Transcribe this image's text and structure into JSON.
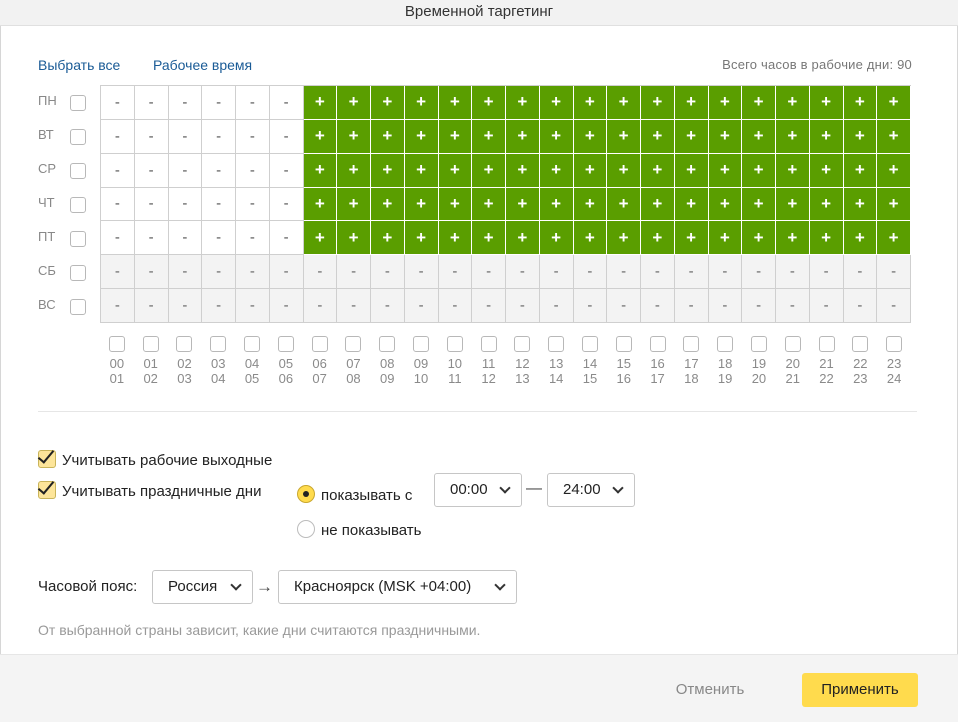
{
  "modal": {
    "title": "Временной таргетинг"
  },
  "links": {
    "select_all": "Выбрать все",
    "work_time": "Рабочее время"
  },
  "summary": {
    "total_hours_text": "Всего часов в рабочие дни: 90"
  },
  "days": [
    "ПН",
    "ВТ",
    "СР",
    "ЧТ",
    "ПТ",
    "СБ",
    "ВС"
  ],
  "hours": [
    [
      "00",
      "01"
    ],
    [
      "01",
      "02"
    ],
    [
      "02",
      "03"
    ],
    [
      "03",
      "04"
    ],
    [
      "04",
      "05"
    ],
    [
      "05",
      "06"
    ],
    [
      "06",
      "07"
    ],
    [
      "07",
      "08"
    ],
    [
      "08",
      "09"
    ],
    [
      "09",
      "10"
    ],
    [
      "10",
      "11"
    ],
    [
      "11",
      "12"
    ],
    [
      "12",
      "13"
    ],
    [
      "13",
      "14"
    ],
    [
      "14",
      "15"
    ],
    [
      "15",
      "16"
    ],
    [
      "16",
      "17"
    ],
    [
      "17",
      "18"
    ],
    [
      "18",
      "19"
    ],
    [
      "19",
      "20"
    ],
    [
      "20",
      "21"
    ],
    [
      "21",
      "22"
    ],
    [
      "22",
      "23"
    ],
    [
      "23",
      "24"
    ]
  ],
  "grid": {
    "selected_symbol": "+",
    "unselected_symbol": "-",
    "rows": [
      [
        0,
        0,
        0,
        0,
        0,
        0,
        1,
        1,
        1,
        1,
        1,
        1,
        1,
        1,
        1,
        1,
        1,
        1,
        1,
        1,
        1,
        1,
        1,
        1
      ],
      [
        0,
        0,
        0,
        0,
        0,
        0,
        1,
        1,
        1,
        1,
        1,
        1,
        1,
        1,
        1,
        1,
        1,
        1,
        1,
        1,
        1,
        1,
        1,
        1
      ],
      [
        0,
        0,
        0,
        0,
        0,
        0,
        1,
        1,
        1,
        1,
        1,
        1,
        1,
        1,
        1,
        1,
        1,
        1,
        1,
        1,
        1,
        1,
        1,
        1
      ],
      [
        0,
        0,
        0,
        0,
        0,
        0,
        1,
        1,
        1,
        1,
        1,
        1,
        1,
        1,
        1,
        1,
        1,
        1,
        1,
        1,
        1,
        1,
        1,
        1
      ],
      [
        0,
        0,
        0,
        0,
        0,
        0,
        1,
        1,
        1,
        1,
        1,
        1,
        1,
        1,
        1,
        1,
        1,
        1,
        1,
        1,
        1,
        1,
        1,
        1
      ],
      [
        0,
        0,
        0,
        0,
        0,
        0,
        0,
        0,
        0,
        0,
        0,
        0,
        0,
        0,
        0,
        0,
        0,
        0,
        0,
        0,
        0,
        0,
        0,
        0
      ],
      [
        0,
        0,
        0,
        0,
        0,
        0,
        0,
        0,
        0,
        0,
        0,
        0,
        0,
        0,
        0,
        0,
        0,
        0,
        0,
        0,
        0,
        0,
        0,
        0
      ]
    ],
    "weekend_rows": [
      5,
      6
    ],
    "selected_color": "#5a9e00"
  },
  "options": {
    "working_weekends": {
      "label": "Учитывать рабочие выходные",
      "checked": true
    },
    "holidays": {
      "label": "Учитывать праздничные дни",
      "checked": true
    },
    "radio_show_from": {
      "label": "показывать с",
      "selected": true
    },
    "radio_hide": {
      "label": "не показывать",
      "selected": false
    },
    "time_from": "00:00",
    "time_to": "24:00",
    "dash": "—"
  },
  "timezone": {
    "label": "Часовой пояс:",
    "country": "Россия",
    "arrow": "→",
    "zone": "Красноярск (MSK +04:00)",
    "hint": "От выбранной страны зависит, какие дни считаются праздничными."
  },
  "footer": {
    "cancel": "Отменить",
    "apply": "Применить"
  },
  "colors": {
    "accent": "#ffdb4d",
    "link": "#1a5b96",
    "selected_cell": "#5a9e00"
  }
}
